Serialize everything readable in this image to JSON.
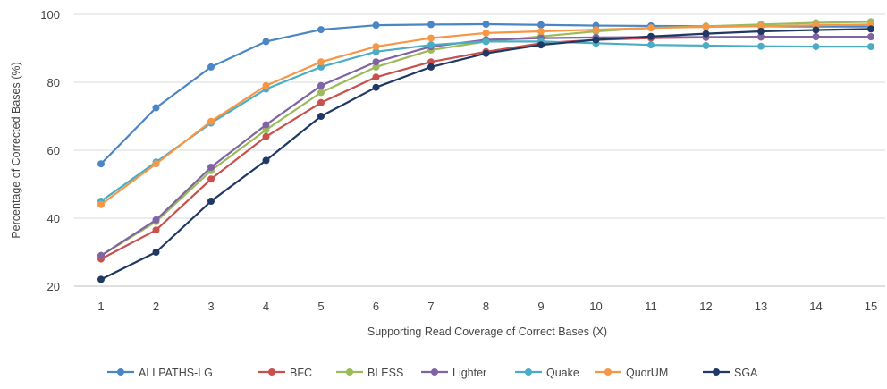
{
  "chart_data": {
    "type": "line",
    "title": "",
    "xlabel": "Supporting Read Coverage of Correct Bases (X)",
    "ylabel": "Percentage of Corrected Bases (%)",
    "x": [
      1,
      2,
      3,
      4,
      5,
      6,
      7,
      8,
      9,
      10,
      11,
      12,
      13,
      14,
      15
    ],
    "xlim": [
      1,
      15
    ],
    "ylim": [
      20,
      100
    ],
    "yticks": [
      20,
      40,
      60,
      80,
      100
    ],
    "grid": "horizontal",
    "legend_position": "bottom",
    "series": [
      {
        "name": "ALLPATHS-LG",
        "color": "#4a86c5",
        "values": [
          56.0,
          72.5,
          84.5,
          92.0,
          95.5,
          96.8,
          97.0,
          97.1,
          96.9,
          96.7,
          96.6,
          96.5,
          96.5,
          96.4,
          96.4
        ]
      },
      {
        "name": "BFC",
        "color": "#c9504c",
        "values": [
          28.0,
          36.5,
          51.5,
          64.0,
          74.0,
          81.5,
          86.0,
          89.0,
          91.5,
          92.5,
          93.0,
          93.2,
          93.3,
          93.4,
          93.4
        ]
      },
      {
        "name": "BLESS",
        "color": "#9bbb59",
        "values": [
          29.0,
          39.0,
          54.0,
          66.0,
          77.0,
          84.5,
          89.5,
          92.0,
          93.5,
          95.0,
          96.0,
          96.5,
          97.0,
          97.5,
          97.8
        ]
      },
      {
        "name": "Lighter",
        "color": "#7f63a2",
        "values": [
          29.0,
          39.5,
          55.0,
          67.5,
          79.0,
          86.0,
          90.5,
          92.5,
          93.0,
          93.2,
          93.3,
          93.3,
          93.4,
          93.4,
          93.4
        ]
      },
      {
        "name": "Quake",
        "color": "#4bacc6",
        "values": [
          45.0,
          56.5,
          68.0,
          78.0,
          84.5,
          89.0,
          91.0,
          92.0,
          92.0,
          91.5,
          91.0,
          90.8,
          90.6,
          90.5,
          90.5
        ]
      },
      {
        "name": "QuorUM",
        "color": "#f79646",
        "values": [
          44.0,
          56.0,
          68.5,
          79.0,
          86.0,
          90.5,
          93.0,
          94.5,
          95.0,
          95.5,
          96.0,
          96.3,
          96.5,
          96.8,
          97.0
        ]
      },
      {
        "name": "SGA",
        "color": "#1f3864",
        "values": [
          22.0,
          30.0,
          45.0,
          57.0,
          70.0,
          78.5,
          84.5,
          88.5,
          91.0,
          92.5,
          93.5,
          94.3,
          95.0,
          95.4,
          95.7
        ]
      }
    ]
  }
}
